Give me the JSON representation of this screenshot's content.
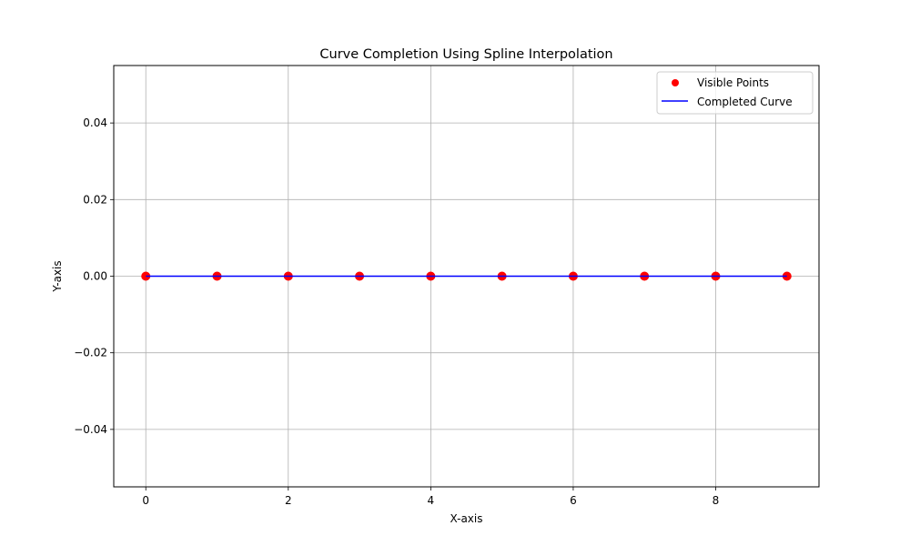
{
  "chart_data": {
    "type": "line",
    "title": "Curve Completion Using Spline Interpolation",
    "xlabel": "X-axis",
    "ylabel": "Y-axis",
    "xlim": [
      -0.45,
      9.45
    ],
    "ylim": [
      -0.055,
      0.055
    ],
    "x_ticks": [
      0,
      2,
      4,
      6,
      8
    ],
    "x_tick_labels": [
      "0",
      "2",
      "4",
      "6",
      "8"
    ],
    "y_ticks": [
      0.04,
      0.02,
      0.0,
      -0.02,
      -0.04
    ],
    "y_tick_labels": [
      "0.04",
      "0.02",
      "0.00",
      "−0.02",
      "−0.04"
    ],
    "grid": true,
    "legend_position": "top-right",
    "series": [
      {
        "name": "Visible Points",
        "kind": "scatter",
        "color": "#ff0000",
        "x": [
          0,
          1,
          2,
          3,
          4,
          5,
          6,
          7,
          8,
          9
        ],
        "y": [
          0,
          0,
          0,
          0,
          0,
          0,
          0,
          0,
          0,
          0
        ]
      },
      {
        "name": "Completed Curve",
        "kind": "line",
        "color": "#0000ff",
        "x": [
          0,
          9
        ],
        "y": [
          0,
          0
        ]
      }
    ]
  }
}
